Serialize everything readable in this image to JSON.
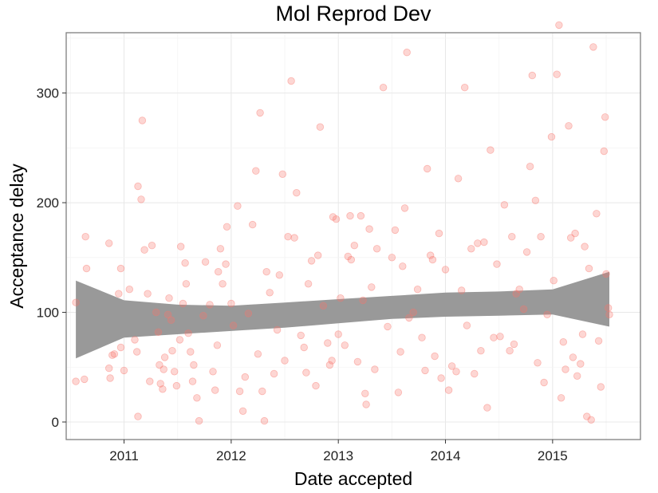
{
  "chart_data": {
    "type": "scatter",
    "title": "Mol Reprod Dev",
    "xlabel": "Date accepted",
    "ylabel": "Acceptance delay",
    "xlim": [
      2010.46,
      2015.82
    ],
    "ylim": [
      -16,
      355
    ],
    "x_ticks": [
      2011,
      2012,
      2013,
      2014,
      2015
    ],
    "x_tick_labels": [
      "2011",
      "2012",
      "2013",
      "2014",
      "2015"
    ],
    "y_ticks": [
      0,
      100,
      200,
      300
    ],
    "y_tick_labels": [
      "0",
      "100",
      "200",
      "300"
    ],
    "grid": true,
    "point_color": "#f8766d",
    "band_color": "#999999",
    "points": [
      [
        2010.55,
        37
      ],
      [
        2010.55,
        109
      ],
      [
        2010.63,
        39
      ],
      [
        2010.64,
        169
      ],
      [
        2010.65,
        140
      ],
      [
        2010.86,
        163
      ],
      [
        2010.86,
        49
      ],
      [
        2010.87,
        40
      ],
      [
        2010.89,
        61
      ],
      [
        2010.91,
        62
      ],
      [
        2010.95,
        117
      ],
      [
        2010.97,
        140
      ],
      [
        2010.97,
        68
      ],
      [
        2011.0,
        47
      ],
      [
        2011.05,
        121
      ],
      [
        2011.1,
        75
      ],
      [
        2011.12,
        64
      ],
      [
        2011.13,
        5
      ],
      [
        2011.13,
        215
      ],
      [
        2011.16,
        203
      ],
      [
        2011.17,
        275
      ],
      [
        2011.19,
        157
      ],
      [
        2011.22,
        117
      ],
      [
        2011.24,
        37
      ],
      [
        2011.26,
        161
      ],
      [
        2011.3,
        100
      ],
      [
        2011.32,
        82
      ],
      [
        2011.33,
        52
      ],
      [
        2011.34,
        35
      ],
      [
        2011.36,
        30
      ],
      [
        2011.37,
        48
      ],
      [
        2011.38,
        59
      ],
      [
        2011.41,
        98
      ],
      [
        2011.42,
        113
      ],
      [
        2011.44,
        93
      ],
      [
        2011.45,
        65
      ],
      [
        2011.47,
        46
      ],
      [
        2011.49,
        33
      ],
      [
        2011.52,
        75
      ],
      [
        2011.53,
        160
      ],
      [
        2011.55,
        108
      ],
      [
        2011.57,
        145
      ],
      [
        2011.58,
        126
      ],
      [
        2011.6,
        81
      ],
      [
        2011.62,
        64
      ],
      [
        2011.64,
        37
      ],
      [
        2011.65,
        52
      ],
      [
        2011.68,
        22
      ],
      [
        2011.7,
        1
      ],
      [
        2011.74,
        97
      ],
      [
        2011.76,
        146
      ],
      [
        2011.8,
        107
      ],
      [
        2011.83,
        46
      ],
      [
        2011.85,
        29
      ],
      [
        2011.87,
        70
      ],
      [
        2011.88,
        137
      ],
      [
        2011.9,
        158
      ],
      [
        2011.92,
        126
      ],
      [
        2011.95,
        144
      ],
      [
        2011.96,
        178
      ],
      [
        2012.0,
        108
      ],
      [
        2012.02,
        88
      ],
      [
        2012.06,
        197
      ],
      [
        2012.08,
        28
      ],
      [
        2012.11,
        10
      ],
      [
        2012.13,
        41
      ],
      [
        2012.16,
        99
      ],
      [
        2012.2,
        180
      ],
      [
        2012.23,
        229
      ],
      [
        2012.25,
        62
      ],
      [
        2012.27,
        282
      ],
      [
        2012.29,
        28
      ],
      [
        2012.31,
        1
      ],
      [
        2012.33,
        137
      ],
      [
        2012.36,
        118
      ],
      [
        2012.4,
        44
      ],
      [
        2012.43,
        84
      ],
      [
        2012.45,
        134
      ],
      [
        2012.48,
        226
      ],
      [
        2012.5,
        56
      ],
      [
        2012.53,
        169
      ],
      [
        2012.56,
        311
      ],
      [
        2012.59,
        168
      ],
      [
        2012.61,
        209
      ],
      [
        2012.65,
        79
      ],
      [
        2012.68,
        68
      ],
      [
        2012.7,
        45
      ],
      [
        2012.72,
        126
      ],
      [
        2012.75,
        147
      ],
      [
        2012.79,
        33
      ],
      [
        2012.81,
        152
      ],
      [
        2012.83,
        269
      ],
      [
        2012.86,
        106
      ],
      [
        2012.9,
        72
      ],
      [
        2012.92,
        52
      ],
      [
        2012.94,
        56
      ],
      [
        2012.95,
        187
      ],
      [
        2012.98,
        185
      ],
      [
        2013.0,
        80
      ],
      [
        2013.02,
        113
      ],
      [
        2013.06,
        70
      ],
      [
        2013.09,
        151
      ],
      [
        2013.11,
        188
      ],
      [
        2013.12,
        148
      ],
      [
        2013.15,
        161
      ],
      [
        2013.18,
        55
      ],
      [
        2013.21,
        188
      ],
      [
        2013.23,
        111
      ],
      [
        2013.25,
        26
      ],
      [
        2013.26,
        16
      ],
      [
        2013.29,
        176
      ],
      [
        2013.31,
        123
      ],
      [
        2013.34,
        48
      ],
      [
        2013.36,
        158
      ],
      [
        2013.42,
        305
      ],
      [
        2013.46,
        87
      ],
      [
        2013.5,
        150
      ],
      [
        2013.53,
        175
      ],
      [
        2013.56,
        27
      ],
      [
        2013.58,
        64
      ],
      [
        2013.6,
        142
      ],
      [
        2013.62,
        195
      ],
      [
        2013.64,
        337
      ],
      [
        2013.66,
        95
      ],
      [
        2013.7,
        100
      ],
      [
        2013.74,
        121
      ],
      [
        2013.78,
        77
      ],
      [
        2013.81,
        47
      ],
      [
        2013.83,
        231
      ],
      [
        2013.86,
        152
      ],
      [
        2013.88,
        148
      ],
      [
        2013.9,
        60
      ],
      [
        2013.94,
        172
      ],
      [
        2013.96,
        40
      ],
      [
        2014.0,
        139
      ],
      [
        2014.03,
        29
      ],
      [
        2014.06,
        51
      ],
      [
        2014.1,
        46
      ],
      [
        2014.12,
        222
      ],
      [
        2014.15,
        120
      ],
      [
        2014.18,
        305
      ],
      [
        2014.2,
        88
      ],
      [
        2014.24,
        158
      ],
      [
        2014.27,
        44
      ],
      [
        2014.3,
        163
      ],
      [
        2014.33,
        65
      ],
      [
        2014.36,
        164
      ],
      [
        2014.39,
        13
      ],
      [
        2014.42,
        248
      ],
      [
        2014.45,
        77
      ],
      [
        2014.48,
        144
      ],
      [
        2014.51,
        78
      ],
      [
        2014.55,
        198
      ],
      [
        2014.6,
        65
      ],
      [
        2014.62,
        169
      ],
      [
        2014.64,
        71
      ],
      [
        2014.66,
        117
      ],
      [
        2014.69,
        121
      ],
      [
        2014.73,
        103
      ],
      [
        2014.76,
        155
      ],
      [
        2014.79,
        233
      ],
      [
        2014.81,
        316
      ],
      [
        2014.84,
        202
      ],
      [
        2014.86,
        54
      ],
      [
        2014.89,
        169
      ],
      [
        2014.92,
        36
      ],
      [
        2014.95,
        98
      ],
      [
        2014.99,
        260
      ],
      [
        2015.01,
        129
      ],
      [
        2015.04,
        317
      ],
      [
        2015.06,
        362
      ],
      [
        2015.08,
        22
      ],
      [
        2015.1,
        73
      ],
      [
        2015.12,
        48
      ],
      [
        2015.15,
        270
      ],
      [
        2015.17,
        168
      ],
      [
        2015.19,
        59
      ],
      [
        2015.21,
        172
      ],
      [
        2015.23,
        42
      ],
      [
        2015.26,
        53
      ],
      [
        2015.28,
        80
      ],
      [
        2015.3,
        160
      ],
      [
        2015.32,
        5
      ],
      [
        2015.34,
        140
      ],
      [
        2015.36,
        2
      ],
      [
        2015.38,
        342
      ],
      [
        2015.41,
        190
      ],
      [
        2015.43,
        74
      ],
      [
        2015.45,
        32
      ],
      [
        2015.48,
        247
      ],
      [
        2015.49,
        278
      ],
      [
        2015.5,
        135
      ],
      [
        2015.52,
        104
      ],
      [
        2015.53,
        98
      ]
    ],
    "smooth": {
      "x": [
        2010.55,
        2011.0,
        2011.5,
        2012.0,
        2012.5,
        2013.0,
        2013.5,
        2014.0,
        2014.5,
        2015.0,
        2015.53
      ],
      "lower": [
        58,
        77,
        80,
        83,
        86,
        90,
        94,
        96,
        97,
        98,
        87
      ],
      "upper": [
        129,
        111,
        107,
        106,
        109,
        112,
        115,
        118,
        119,
        121,
        137
      ]
    }
  }
}
